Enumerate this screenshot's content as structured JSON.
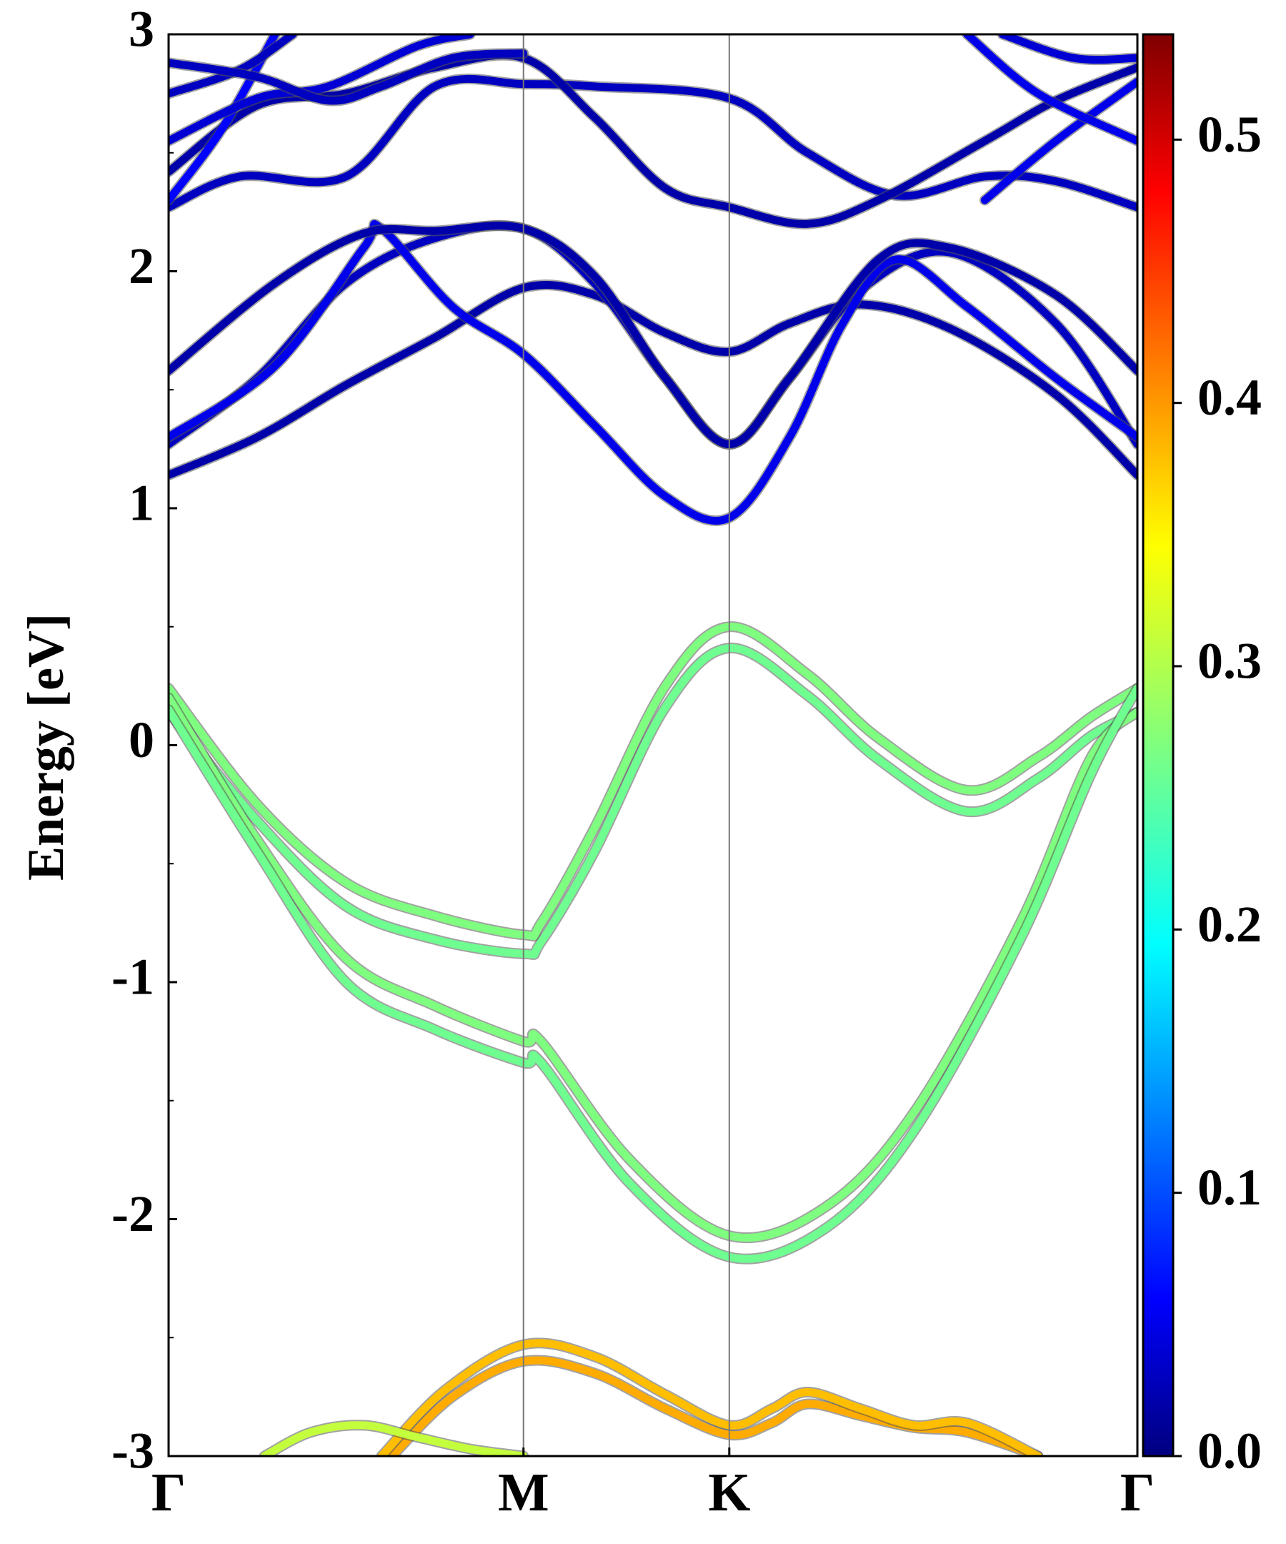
{
  "chart_data": {
    "type": "line",
    "title": "",
    "xlabel": "",
    "ylabel": "Energy [eV]",
    "ylim": [
      -3,
      3
    ],
    "y_ticks": [
      "-3",
      "-2",
      "-1",
      "0",
      "1",
      "2",
      "3"
    ],
    "k_points": [
      {
        "label": "Γ",
        "x": 0.0
      },
      {
        "label": "M",
        "x": 1.0
      },
      {
        "label": "K",
        "x": 1.58
      },
      {
        "label": "Γ",
        "x": 2.73
      }
    ],
    "grid": false,
    "colorbar": {
      "colormap": "jet",
      "range": [
        0.0,
        0.54
      ],
      "ticks": [
        "0.0",
        "0.1",
        "0.2",
        "0.3",
        "0.4",
        "0.5"
      ]
    },
    "series": [
      {
        "color_value": 0.02,
        "points": [
          [
            0,
            1.14
          ],
          [
            0.25,
            1.3
          ],
          [
            0.5,
            1.52
          ],
          [
            0.75,
            1.72
          ],
          [
            1.0,
            1.93
          ],
          [
            1.2,
            1.9
          ],
          [
            1.4,
            1.74
          ],
          [
            1.58,
            1.66
          ],
          [
            1.75,
            1.78
          ],
          [
            1.95,
            1.86
          ],
          [
            2.2,
            1.76
          ],
          [
            2.5,
            1.48
          ],
          [
            2.73,
            1.14
          ]
        ]
      },
      {
        "color_value": 0.03,
        "points": [
          [
            0,
            1.27
          ],
          [
            0.25,
            1.55
          ],
          [
            0.5,
            1.95
          ],
          [
            0.75,
            2.14
          ],
          [
            1.0,
            2.18
          ],
          [
            1.2,
            1.95
          ],
          [
            1.4,
            1.55
          ],
          [
            1.58,
            1.27
          ],
          [
            1.75,
            1.55
          ],
          [
            1.95,
            1.92
          ],
          [
            2.2,
            2.08
          ],
          [
            2.5,
            1.78
          ],
          [
            2.73,
            1.27
          ]
        ]
      },
      {
        "color_value": 0.05,
        "points": [
          [
            0,
            1.3
          ],
          [
            0.3,
            1.6
          ],
          [
            0.55,
            2.1
          ],
          [
            0.6,
            2.18
          ],
          [
            0.8,
            1.85
          ],
          [
            1.0,
            1.65
          ],
          [
            1.2,
            1.35
          ],
          [
            1.4,
            1.05
          ],
          [
            1.58,
            0.96
          ],
          [
            1.75,
            1.3
          ],
          [
            1.9,
            1.78
          ],
          [
            2.05,
            2.05
          ],
          [
            2.25,
            1.85
          ],
          [
            2.5,
            1.55
          ],
          [
            2.73,
            1.3
          ]
        ]
      },
      {
        "color_value": 0.02,
        "points": [
          [
            0,
            1.58
          ],
          [
            0.3,
            1.95
          ],
          [
            0.55,
            2.16
          ],
          [
            0.75,
            2.17
          ],
          [
            1.0,
            2.18
          ],
          [
            1.2,
            1.98
          ],
          [
            1.4,
            1.55
          ],
          [
            1.58,
            1.27
          ],
          [
            1.75,
            1.55
          ],
          [
            2.0,
            2.05
          ],
          [
            2.2,
            2.1
          ],
          [
            2.5,
            1.9
          ],
          [
            2.73,
            1.58
          ]
        ]
      },
      {
        "color_value": 0.03,
        "points": [
          [
            0,
            2.27
          ],
          [
            0.2,
            2.4
          ],
          [
            0.5,
            2.4
          ],
          [
            0.75,
            2.78
          ],
          [
            1.0,
            2.79
          ],
          [
            1.2,
            2.78
          ],
          [
            1.58,
            2.73
          ],
          [
            1.8,
            2.5
          ],
          [
            2.05,
            2.32
          ],
          [
            2.3,
            2.4
          ],
          [
            2.5,
            2.38
          ],
          [
            2.73,
            2.27
          ]
        ]
      },
      {
        "color_value": 0.02,
        "points": [
          [
            0,
            2.42
          ],
          [
            0.25,
            2.7
          ],
          [
            0.5,
            2.75
          ],
          [
            0.75,
            2.86
          ],
          [
            1.0,
            2.9
          ],
          [
            1.2,
            2.65
          ],
          [
            1.4,
            2.35
          ],
          [
            1.58,
            2.27
          ],
          [
            1.8,
            2.2
          ],
          [
            2.0,
            2.3
          ],
          [
            2.3,
            2.55
          ],
          [
            2.5,
            2.72
          ],
          [
            2.73,
            2.86
          ]
        ]
      },
      {
        "color_value": 0.06,
        "points": [
          [
            0,
            2.3
          ],
          [
            0.15,
            2.6
          ],
          [
            0.3,
            3.0
          ]
        ]
      },
      {
        "color_value": 0.04,
        "points": [
          [
            0,
            2.55
          ],
          [
            0.25,
            2.73
          ],
          [
            0.45,
            2.78
          ],
          [
            0.7,
            2.95
          ],
          [
            0.85,
            3.0
          ]
        ]
      },
      {
        "color_value": 0.05,
        "points": [
          [
            2.3,
            2.3
          ],
          [
            2.5,
            2.55
          ],
          [
            2.73,
            2.8
          ]
        ]
      },
      {
        "color_value": 0.05,
        "points": [
          [
            2.25,
            3.0
          ],
          [
            2.45,
            2.75
          ],
          [
            2.73,
            2.55
          ]
        ]
      },
      {
        "color_value": 0.04,
        "points": [
          [
            2.35,
            3.0
          ],
          [
            2.55,
            2.9
          ],
          [
            2.73,
            2.9
          ]
        ]
      },
      {
        "color_value": 0.03,
        "points": [
          [
            0,
            2.75
          ],
          [
            0.2,
            2.85
          ],
          [
            0.35,
            3.0
          ]
        ]
      },
      {
        "color_value": 0.03,
        "points": [
          [
            0,
            2.88
          ],
          [
            0.25,
            2.82
          ],
          [
            0.45,
            2.72
          ],
          [
            0.6,
            2.78
          ],
          [
            0.8,
            2.9
          ],
          [
            1.0,
            2.92
          ]
        ]
      },
      {
        "color_value": 0.27,
        "points": [
          [
            0,
            0.24
          ],
          [
            0.25,
            -0.25
          ],
          [
            0.5,
            -0.58
          ],
          [
            0.75,
            -0.72
          ],
          [
            1.0,
            -0.8
          ],
          [
            1.05,
            -0.75
          ],
          [
            1.2,
            -0.35
          ],
          [
            1.4,
            0.25
          ],
          [
            1.58,
            0.5
          ],
          [
            1.8,
            0.3
          ],
          [
            2.0,
            0.03
          ],
          [
            2.25,
            -0.19
          ],
          [
            2.45,
            -0.05
          ],
          [
            2.6,
            0.12
          ],
          [
            2.73,
            0.24
          ]
        ]
      },
      {
        "color_value": 0.26,
        "points": [
          [
            0,
            0.14
          ],
          [
            0.25,
            -0.32
          ],
          [
            0.5,
            -0.68
          ],
          [
            0.75,
            -0.82
          ],
          [
            1.0,
            -0.88
          ],
          [
            1.05,
            -0.83
          ],
          [
            1.2,
            -0.45
          ],
          [
            1.4,
            0.16
          ],
          [
            1.58,
            0.41
          ],
          [
            1.8,
            0.21
          ],
          [
            2.0,
            -0.06
          ],
          [
            2.25,
            -0.28
          ],
          [
            2.45,
            -0.14
          ],
          [
            2.6,
            0.04
          ],
          [
            2.73,
            0.14
          ]
        ]
      },
      {
        "color_value": 0.27,
        "points": [
          [
            0,
            0.2
          ],
          [
            0.25,
            -0.4
          ],
          [
            0.5,
            -0.9
          ],
          [
            0.75,
            -1.1
          ],
          [
            1.0,
            -1.25
          ],
          [
            1.05,
            -1.25
          ],
          [
            1.3,
            -1.75
          ],
          [
            1.58,
            -2.07
          ],
          [
            1.85,
            -1.95
          ],
          [
            2.1,
            -1.55
          ],
          [
            2.4,
            -0.75
          ],
          [
            2.6,
            -0.05
          ],
          [
            2.73,
            0.14
          ]
        ]
      },
      {
        "color_value": 0.26,
        "points": [
          [
            0,
            0.15
          ],
          [
            0.25,
            -0.45
          ],
          [
            0.5,
            -1.0
          ],
          [
            0.75,
            -1.2
          ],
          [
            1.0,
            -1.34
          ],
          [
            1.05,
            -1.34
          ],
          [
            1.3,
            -1.85
          ],
          [
            1.58,
            -2.16
          ],
          [
            1.85,
            -2.04
          ],
          [
            2.1,
            -1.63
          ],
          [
            2.4,
            -0.82
          ],
          [
            2.6,
            -0.12
          ],
          [
            2.73,
            0.24
          ]
        ]
      },
      {
        "color_value": 0.39,
        "points": [
          [
            0.63,
            -3.0
          ],
          [
            0.8,
            -2.75
          ],
          [
            1.0,
            -2.6
          ],
          [
            1.2,
            -2.65
          ],
          [
            1.4,
            -2.8
          ],
          [
            1.58,
            -2.91
          ],
          [
            1.7,
            -2.86
          ],
          [
            1.8,
            -2.78
          ],
          [
            1.95,
            -2.83
          ],
          [
            2.1,
            -2.88
          ],
          [
            2.25,
            -2.9
          ],
          [
            2.45,
            -3.0
          ]
        ]
      },
      {
        "color_value": 0.38,
        "points": [
          [
            0.6,
            -3.0
          ],
          [
            0.78,
            -2.72
          ],
          [
            1.0,
            -2.53
          ],
          [
            1.2,
            -2.58
          ],
          [
            1.4,
            -2.74
          ],
          [
            1.58,
            -2.87
          ],
          [
            1.7,
            -2.8
          ],
          [
            1.8,
            -2.73
          ],
          [
            1.95,
            -2.8
          ],
          [
            2.1,
            -2.87
          ],
          [
            2.25,
            -2.86
          ],
          [
            2.45,
            -3.0
          ]
        ]
      },
      {
        "color_value": 0.31,
        "points": [
          [
            0.27,
            -3.0
          ],
          [
            0.4,
            -2.9
          ],
          [
            0.55,
            -2.87
          ],
          [
            0.7,
            -2.92
          ],
          [
            0.85,
            -2.97
          ],
          [
            1.0,
            -3.0
          ]
        ]
      }
    ]
  }
}
